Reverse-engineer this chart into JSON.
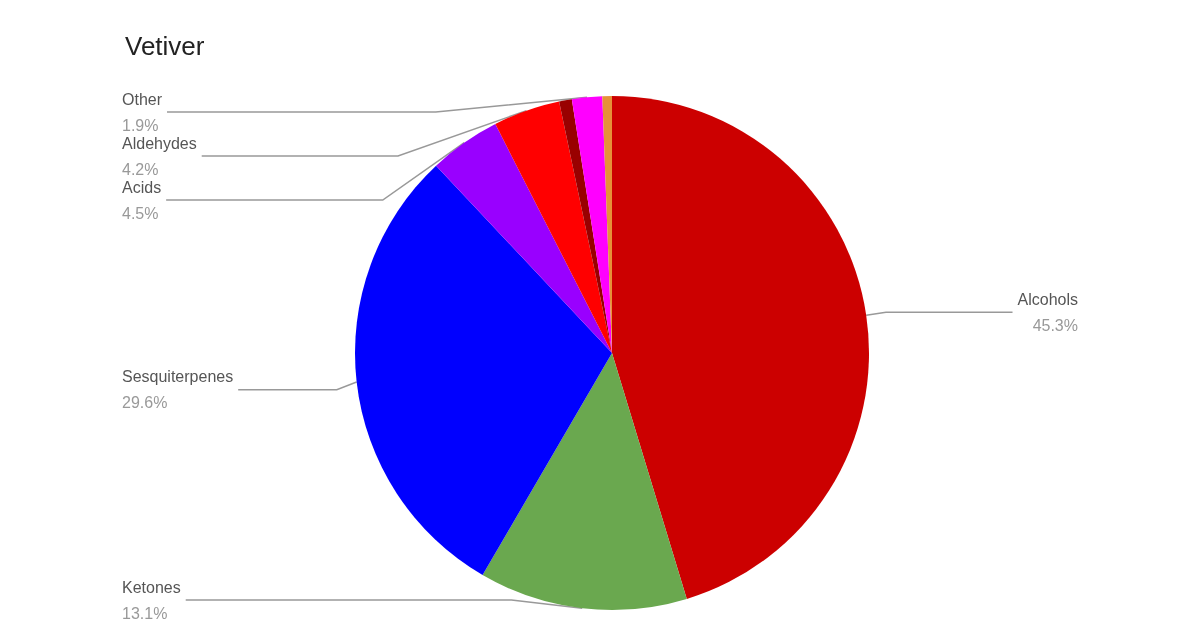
{
  "chart_data": {
    "type": "pie",
    "title": "Vetiver",
    "categories": [
      "Alcohols",
      "Ketones",
      "Sesquiterpenes",
      "Acids",
      "Aldehydes",
      null,
      "Other",
      null
    ],
    "values": [
      45.3,
      13.1,
      29.6,
      4.5,
      4.2,
      0.8,
      1.9,
      0.6
    ],
    "colors": [
      "#cc0000",
      "#6aa84f",
      "#0000ff",
      "#9900ff",
      "#ff0000",
      "#990000",
      "#ff00ff",
      "#e69138"
    ],
    "value_labels": [
      "45.3%",
      "13.1%",
      "29.6%",
      "4.5%",
      "4.2%",
      null,
      "1.9%",
      null
    ],
    "legend": false
  }
}
